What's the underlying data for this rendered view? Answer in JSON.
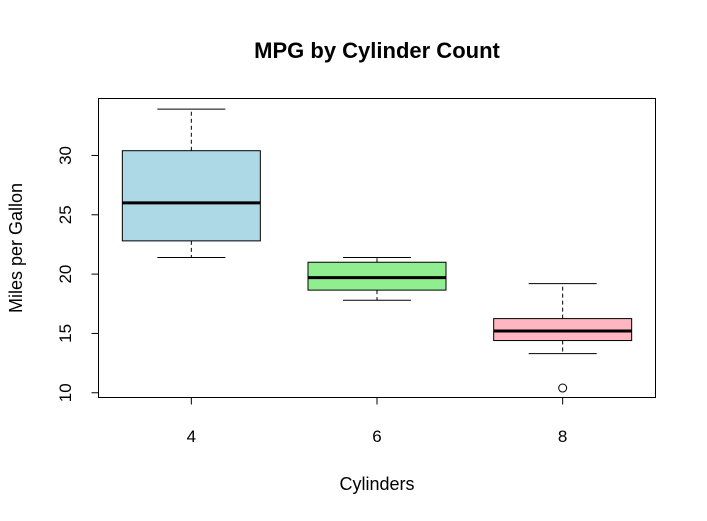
{
  "chart_data": {
    "type": "boxplot",
    "title": "MPG by Cylinder Count",
    "xlabel": "Cylinders",
    "ylabel": "Miles per Gallon",
    "categories": [
      "4",
      "6",
      "8"
    ],
    "ylim": [
      9.6,
      34.8
    ],
    "yticks": [
      10,
      15,
      20,
      25,
      30
    ],
    "grid": false,
    "legend": "none",
    "boxes": [
      {
        "category": "4",
        "min": 21.4,
        "q1": 22.8,
        "median": 26.0,
        "q3": 30.4,
        "max": 33.9,
        "outliers": [],
        "color": "#add8e6"
      },
      {
        "category": "6",
        "min": 17.8,
        "q1": 18.65,
        "median": 19.7,
        "q3": 21.0,
        "max": 21.4,
        "outliers": [],
        "color": "#90ee90"
      },
      {
        "category": "8",
        "min": 13.3,
        "q1": 14.4,
        "median": 15.2,
        "q3": 16.25,
        "max": 19.2,
        "outliers": [
          10.4
        ],
        "color": "#ffb6c1"
      }
    ]
  }
}
